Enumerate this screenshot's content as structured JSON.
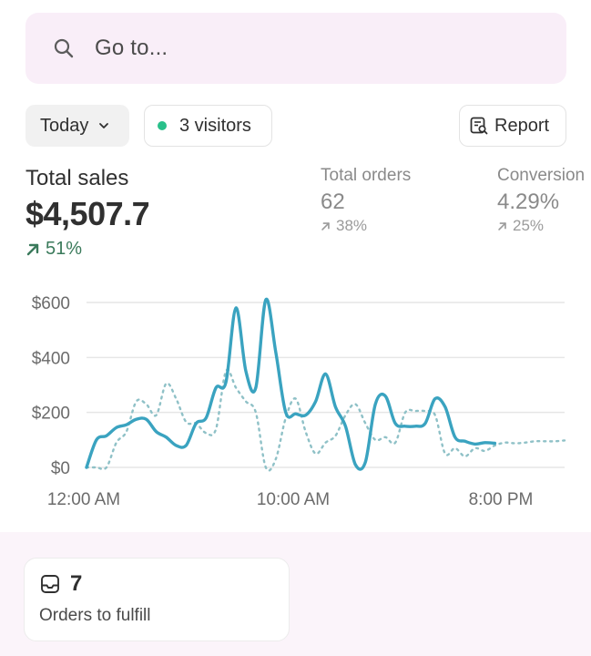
{
  "search": {
    "placeholder": "Go to..."
  },
  "filters": {
    "date_label": "Today",
    "visitors_label": "3 visitors",
    "report_label": "Report"
  },
  "metrics": {
    "total_sales": {
      "label": "Total sales",
      "value": "$4,507.7",
      "delta": "51%"
    },
    "total_orders": {
      "label": "Total orders",
      "value": "62",
      "delta": "38%"
    },
    "conversion": {
      "label": "Conversion",
      "value": "4.29%",
      "delta": "25%"
    }
  },
  "colors": {
    "series_today": "#3aa3c0",
    "series_previous": "#8fc1c7",
    "positive": "#3a7a5b",
    "visitor_dot": "#29c08a",
    "search_bg": "#f9eef8"
  },
  "chart_data": {
    "type": "line",
    "yticks": [
      "$0",
      "$200",
      "$400",
      "$600"
    ],
    "xticks": [
      "12:00 AM",
      "10:00 AM",
      "8:00 PM"
    ],
    "ylim": [
      0,
      600
    ],
    "xlim": [
      0,
      24
    ],
    "grid": true,
    "series": [
      {
        "style": "solid",
        "x": [
          0,
          0.5,
          1,
          1.5,
          2,
          2.5,
          3,
          3.5,
          4,
          4.5,
          5,
          5.5,
          6,
          6.5,
          7,
          7.5,
          8,
          8.5,
          9,
          9.5,
          10,
          10.5,
          11,
          11.5,
          12,
          12.5,
          13,
          13.5,
          14,
          14.5,
          15,
          15.5,
          16,
          16.5,
          17,
          17.5,
          18,
          18.5,
          19,
          19.5,
          20,
          20.5
        ],
        "y": [
          0,
          100,
          115,
          145,
          155,
          175,
          175,
          130,
          110,
          80,
          80,
          160,
          180,
          290,
          310,
          580,
          350,
          290,
          610,
          420,
          200,
          195,
          190,
          240,
          340,
          220,
          150,
          10,
          20,
          230,
          260,
          160,
          150,
          150,
          160,
          250,
          220,
          110,
          95,
          85,
          90,
          88
        ]
      },
      {
        "style": "dotted",
        "x": [
          0,
          0.5,
          1,
          1.5,
          2,
          2.5,
          3,
          3.5,
          4,
          4.5,
          5,
          5.5,
          6,
          6.5,
          7,
          7.5,
          8,
          8.5,
          9,
          9.5,
          10,
          10.5,
          11,
          11.5,
          12,
          12.5,
          13,
          13.5,
          14,
          14.5,
          15,
          15.5,
          16,
          16.5,
          17,
          17.5,
          18,
          18.5,
          19,
          19.5,
          20,
          20.5,
          21,
          21.5,
          22,
          22.5,
          23,
          23.5,
          24
        ],
        "y": [
          0,
          0,
          0,
          90,
          130,
          240,
          230,
          190,
          305,
          250,
          165,
          160,
          125,
          140,
          350,
          290,
          240,
          200,
          0,
          30,
          180,
          250,
          130,
          50,
          90,
          115,
          190,
          230,
          160,
          100,
          110,
          90,
          200,
          205,
          205,
          190,
          50,
          70,
          40,
          70,
          60,
          80,
          90,
          88,
          90,
          95,
          95,
          95,
          98
        ]
      }
    ]
  },
  "orders_card": {
    "count": "7",
    "label": "Orders to fulfill"
  }
}
